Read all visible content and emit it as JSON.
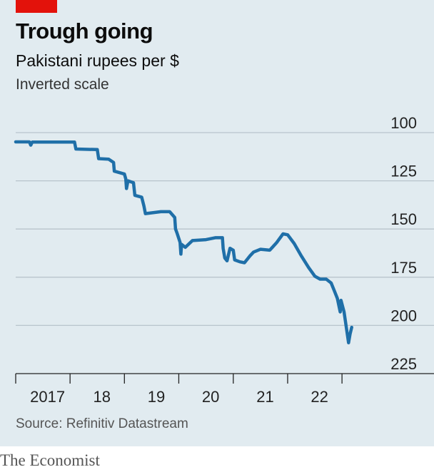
{
  "header": {
    "title": "Trough going",
    "subtitle": "Pakistani rupees per $",
    "note": "Inverted scale"
  },
  "footer": {
    "source": "Source: Refinitiv Datastream",
    "brand": "The Economist"
  },
  "colors": {
    "accent": "#e3120b",
    "line": "#1f6fa8",
    "panel": "#e1ebf0",
    "grid": "#b8c4cc"
  },
  "chart_data": {
    "type": "line",
    "title": "Trough going",
    "subtitle": "Pakistani rupees per $",
    "ylabel": "Inverted scale",
    "y_inverted": true,
    "ylim": [
      100,
      225
    ],
    "xlim": [
      "2016-06-01",
      "2022-11-20"
    ],
    "y_ticks": [
      100,
      125,
      150,
      175,
      200,
      225
    ],
    "x_tick_labels": [
      {
        "date": "2017-01-01",
        "label": "2017"
      },
      {
        "date": "2018-01-01",
        "label": "18"
      },
      {
        "date": "2019-01-01",
        "label": "19"
      },
      {
        "date": "2020-01-01",
        "label": "20"
      },
      {
        "date": "2021-01-01",
        "label": "21"
      },
      {
        "date": "2022-01-01",
        "label": "22"
      }
    ],
    "x_tick_marks": [
      "2016-06-01",
      "2017-06-01",
      "2018-06-01",
      "2019-06-01",
      "2020-06-01",
      "2021-06-01",
      "2022-06-01"
    ],
    "grid": true,
    "series": [
      {
        "points": [
          [
            "2016-06-01",
            104.8
          ],
          [
            "2016-09-01",
            104.8
          ],
          [
            "2016-09-10",
            106.5
          ],
          [
            "2016-09-20",
            104.9
          ],
          [
            "2017-07-01",
            104.9
          ],
          [
            "2017-07-10",
            108.5
          ],
          [
            "2017-12-01",
            108.8
          ],
          [
            "2017-12-10",
            113.5
          ],
          [
            "2018-02-15",
            113.8
          ],
          [
            "2018-03-20",
            115.5
          ],
          [
            "2018-03-25",
            120.0
          ],
          [
            "2018-06-01",
            121.5
          ],
          [
            "2018-06-10",
            124.0
          ],
          [
            "2018-06-15",
            129.0
          ],
          [
            "2018-06-25",
            125.0
          ],
          [
            "2018-08-01",
            126.0
          ],
          [
            "2018-08-10",
            132.5
          ],
          [
            "2018-09-25",
            133.5
          ],
          [
            "2018-10-10",
            138.0
          ],
          [
            "2018-10-20",
            142.0
          ],
          [
            "2019-02-01",
            141.0
          ],
          [
            "2019-04-01",
            141.0
          ],
          [
            "2019-05-05",
            144.0
          ],
          [
            "2019-05-10",
            150.0
          ],
          [
            "2019-05-20",
            152.0
          ],
          [
            "2019-06-10",
            157.0
          ],
          [
            "2019-06-15",
            163.0
          ],
          [
            "2019-06-20",
            158.0
          ],
          [
            "2019-07-15",
            159.5
          ],
          [
            "2019-09-01",
            156.0
          ],
          [
            "2019-12-01",
            155.5
          ],
          [
            "2020-02-01",
            154.5
          ],
          [
            "2020-03-20",
            154.5
          ],
          [
            "2020-03-25",
            160.0
          ],
          [
            "2020-04-05",
            165.0
          ],
          [
            "2020-04-20",
            166.5
          ],
          [
            "2020-05-10",
            160.0
          ],
          [
            "2020-06-01",
            161.0
          ],
          [
            "2020-06-10",
            166.0
          ],
          [
            "2020-07-15",
            167.0
          ],
          [
            "2020-08-15",
            167.5
          ],
          [
            "2020-09-20",
            164.0
          ],
          [
            "2020-10-15",
            162.0
          ],
          [
            "2020-12-01",
            160.5
          ],
          [
            "2021-02-01",
            161.0
          ],
          [
            "2021-03-20",
            157.0
          ],
          [
            "2021-05-01",
            152.5
          ],
          [
            "2021-06-01",
            153.0
          ],
          [
            "2021-07-15",
            157.5
          ],
          [
            "2021-09-01",
            164.0
          ],
          [
            "2021-10-20",
            170.0
          ],
          [
            "2021-12-01",
            174.5
          ],
          [
            "2022-01-05",
            176.0
          ],
          [
            "2022-02-15",
            176.0
          ],
          [
            "2022-03-20",
            178.0
          ],
          [
            "2022-04-10",
            182.0
          ],
          [
            "2022-05-01",
            186.0
          ],
          [
            "2022-05-20",
            193.0
          ],
          [
            "2022-05-25",
            187.0
          ],
          [
            "2022-06-15",
            193.0
          ],
          [
            "2022-07-15",
            209.0
          ],
          [
            "2022-07-25",
            204.5
          ],
          [
            "2022-08-05",
            201.0
          ]
        ]
      }
    ]
  }
}
